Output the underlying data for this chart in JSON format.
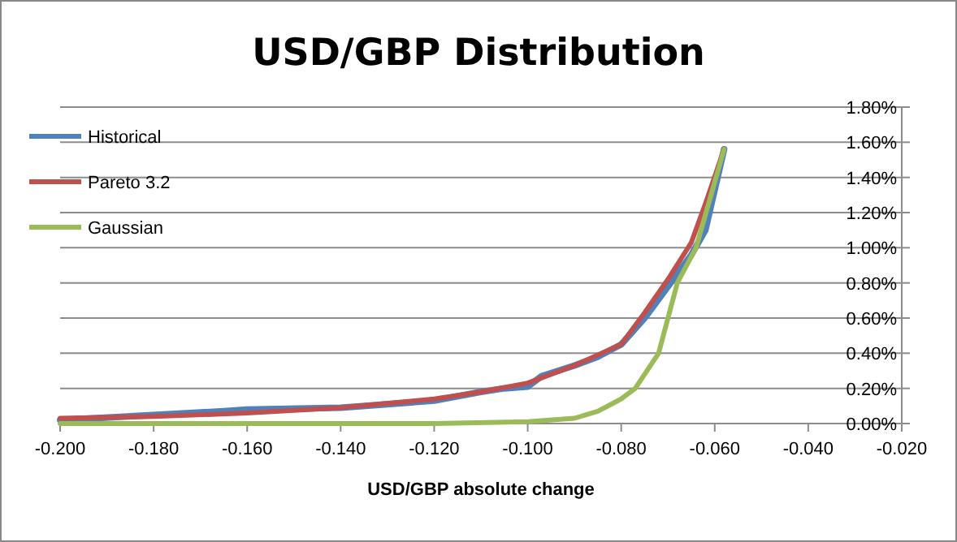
{
  "chart_data": {
    "type": "line",
    "title": "USD/GBP Distribution",
    "xlabel": "USD/GBP absolute change",
    "xlim": [
      -0.2,
      -0.02
    ],
    "xticks": [
      {
        "value": -0.2,
        "label": "-0.200"
      },
      {
        "value": -0.18,
        "label": "-0.180"
      },
      {
        "value": -0.16,
        "label": "-0.160"
      },
      {
        "value": -0.14,
        "label": "-0.140"
      },
      {
        "value": -0.12,
        "label": "-0.120"
      },
      {
        "value": -0.1,
        "label": "-0.100"
      },
      {
        "value": -0.08,
        "label": "-0.080"
      },
      {
        "value": -0.06,
        "label": "-0.060"
      },
      {
        "value": -0.04,
        "label": "-0.040"
      },
      {
        "value": -0.02,
        "label": "-0.020"
      }
    ],
    "ylim": [
      0,
      1.8
    ],
    "yticks": [
      {
        "value": 0,
        "label": "0.00%"
      },
      {
        "value": 0.2,
        "label": "0.20%"
      },
      {
        "value": 0.4,
        "label": "0.40%"
      },
      {
        "value": 0.6,
        "label": "0.60%"
      },
      {
        "value": 0.8,
        "label": "0.80%"
      },
      {
        "value": 1.0,
        "label": "1.00%"
      },
      {
        "value": 1.2,
        "label": "1.20%"
      },
      {
        "value": 1.4,
        "label": "1.40%"
      },
      {
        "value": 1.6,
        "label": "1.60%"
      },
      {
        "value": 1.8,
        "label": "1.80%"
      }
    ],
    "grid": "y",
    "legend": "top left",
    "marker": "none",
    "line_style": "solid",
    "series": [
      {
        "name": "Historical",
        "color": "#4f81bd",
        "x": [
          -0.2,
          -0.165,
          -0.16,
          -0.14,
          -0.13,
          -0.12,
          -0.11,
          -0.105,
          -0.1,
          -0.097,
          -0.09,
          -0.085,
          -0.08,
          -0.075,
          -0.07,
          -0.065,
          -0.062,
          -0.058
        ],
        "values": [
          0.02,
          0.07,
          0.08,
          0.09,
          0.11,
          0.13,
          0.18,
          0.2,
          0.21,
          0.27,
          0.33,
          0.38,
          0.45,
          0.6,
          0.78,
          0.96,
          1.1,
          1.56
        ]
      },
      {
        "name": "Pareto 3.2",
        "color": "#c0504d",
        "x": [
          -0.2,
          -0.18,
          -0.16,
          -0.14,
          -0.12,
          -0.11,
          -0.1,
          -0.09,
          -0.08,
          -0.075,
          -0.07,
          -0.065,
          -0.062,
          -0.058
        ],
        "values": [
          0.03,
          0.04,
          0.06,
          0.09,
          0.14,
          0.18,
          0.23,
          0.33,
          0.45,
          0.63,
          0.82,
          1.03,
          1.25,
          1.56
        ]
      },
      {
        "name": "Gaussian",
        "color": "#9bbb59",
        "x": [
          -0.2,
          -0.12,
          -0.1,
          -0.09,
          -0.085,
          -0.08,
          -0.077,
          -0.072,
          -0.068,
          -0.064,
          -0.058
        ],
        "values": [
          0,
          0,
          0.01,
          0.03,
          0.07,
          0.14,
          0.2,
          0.4,
          0.8,
          1.0,
          1.56
        ]
      }
    ]
  }
}
